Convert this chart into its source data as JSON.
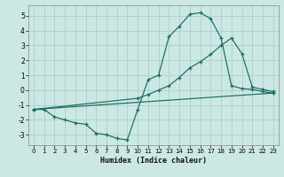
{
  "xlabel": "Humidex (Indice chaleur)",
  "bg_color": "#cce8e4",
  "grid_color": "#aacfcb",
  "line_color": "#1a6b5e",
  "xlim": [
    -0.5,
    23.5
  ],
  "ylim": [
    -3.7,
    5.7
  ],
  "xticks": [
    0,
    1,
    2,
    3,
    4,
    5,
    6,
    7,
    8,
    9,
    10,
    11,
    12,
    13,
    14,
    15,
    16,
    17,
    18,
    19,
    20,
    21,
    22,
    23
  ],
  "yticks": [
    -3,
    -2,
    -1,
    0,
    1,
    2,
    3,
    4,
    5
  ],
  "line1_x": [
    0,
    1,
    2,
    3,
    4,
    5,
    6,
    7,
    8,
    9,
    10,
    11,
    12,
    13,
    14,
    15,
    16,
    17,
    18,
    19,
    20,
    21,
    22,
    23
  ],
  "line1_y": [
    -1.3,
    -1.3,
    -1.8,
    -2.0,
    -2.2,
    -2.3,
    -2.9,
    -3.0,
    -3.25,
    -3.35,
    -1.3,
    0.7,
    1.0,
    3.6,
    4.3,
    5.1,
    5.2,
    4.8,
    3.5,
    0.3,
    0.1,
    0.05,
    -0.1,
    -0.2
  ],
  "line2_x": [
    0,
    23
  ],
  "line2_y": [
    -1.3,
    -0.2
  ],
  "line3_x": [
    0,
    10,
    11,
    12,
    13,
    14,
    15,
    16,
    17,
    18,
    19,
    20,
    21,
    22,
    23
  ],
  "line3_y": [
    -1.3,
    -0.55,
    -0.3,
    0.0,
    0.3,
    0.85,
    1.5,
    1.9,
    2.4,
    3.0,
    3.5,
    2.45,
    0.2,
    0.05,
    -0.1
  ]
}
